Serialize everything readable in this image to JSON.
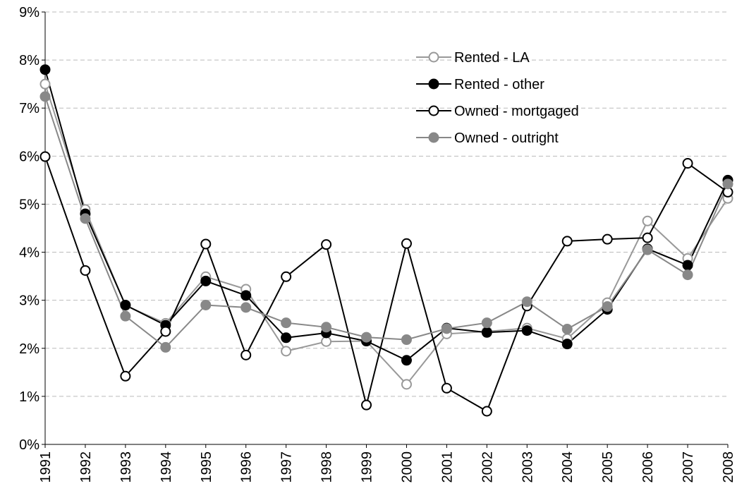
{
  "chart_data": {
    "type": "line",
    "categories": [
      "1991",
      "1992",
      "1993",
      "1994",
      "1995",
      "1996",
      "1997",
      "1998",
      "1999",
      "2000",
      "2001",
      "2002",
      "2003",
      "2004",
      "2005",
      "2006",
      "2007",
      "2008"
    ],
    "series": [
      {
        "name": "Rented - LA",
        "color": "#999999",
        "filled": false,
        "values": [
          7.5,
          4.89,
          2.89,
          2.52,
          3.49,
          3.23,
          1.94,
          2.14,
          2.15,
          1.25,
          2.3,
          2.35,
          2.42,
          2.2,
          2.95,
          4.65,
          3.87,
          5.12
        ]
      },
      {
        "name": "Rented - other",
        "color": "#000000",
        "filled": true,
        "values": [
          7.8,
          4.8,
          2.9,
          2.48,
          3.4,
          3.1,
          2.22,
          2.32,
          2.15,
          1.75,
          2.42,
          2.33,
          2.37,
          2.09,
          2.81,
          4.07,
          3.73,
          5.5
        ]
      },
      {
        "name": "Owned - mortgaged",
        "color": "#000000",
        "filled": false,
        "values": [
          5.99,
          3.62,
          1.42,
          2.35,
          4.17,
          1.86,
          3.49,
          4.16,
          0.82,
          4.18,
          1.17,
          0.69,
          2.88,
          4.23,
          4.27,
          4.3,
          5.85,
          5.25
        ]
      },
      {
        "name": "Owned - outright",
        "color": "#888888",
        "filled": true,
        "values": [
          7.24,
          4.7,
          2.67,
          2.02,
          2.9,
          2.85,
          2.53,
          2.44,
          2.23,
          2.18,
          2.41,
          2.53,
          2.97,
          2.4,
          2.87,
          4.05,
          3.53,
          5.42
        ]
      }
    ],
    "ylim": [
      0,
      9
    ],
    "yticks": [
      {
        "value": 0,
        "label": "0%"
      },
      {
        "value": 1,
        "label": "1%"
      },
      {
        "value": 2,
        "label": "2%"
      },
      {
        "value": 3,
        "label": "3%"
      },
      {
        "value": 4,
        "label": "4%"
      },
      {
        "value": 5,
        "label": "5%"
      },
      {
        "value": 6,
        "label": "6%"
      },
      {
        "value": 7,
        "label": "7%"
      },
      {
        "value": 8,
        "label": "8%"
      },
      {
        "value": 9,
        "label": "9%"
      }
    ],
    "grid": true
  }
}
